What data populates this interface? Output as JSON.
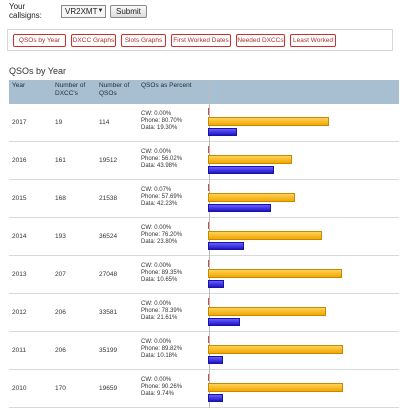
{
  "header": {
    "callsign_label": "Your callsigns:",
    "callsign_value": "VR2XMT",
    "submit_label": "Submit"
  },
  "nav": [
    {
      "label": "QSOs by Year"
    },
    {
      "label": "DXCC Graphs"
    },
    {
      "label": "Slots Graphs"
    },
    {
      "label": "First Worked Dates"
    },
    {
      "label": "Needed DXCCs"
    },
    {
      "label": "Least Worked"
    }
  ],
  "section_title": "QSOs by Year",
  "table": {
    "columns": [
      "Year",
      "Number of DXCC's",
      "Number of QSOs",
      "QSOs as Percent"
    ],
    "rows": [
      {
        "year": "2017",
        "dxcc": "19",
        "qsos": "114",
        "cw": "CW: 0.00%",
        "phone": "Phone: 80.70%",
        "data": "Data: 19.30%",
        "cw_pct": 0.0,
        "phone_pct": 80.7,
        "data_pct": 19.3
      },
      {
        "year": "2016",
        "dxcc": "161",
        "qsos": "19512",
        "cw": "CW: 0.00%",
        "phone": "Phone: 56.02%",
        "data": "Data: 43.98%",
        "cw_pct": 0.0,
        "phone_pct": 56.02,
        "data_pct": 43.98
      },
      {
        "year": "2015",
        "dxcc": "168",
        "qsos": "21538",
        "cw": "CW: 0.07%",
        "phone": "Phone: 57.69%",
        "data": "Data: 42.23%",
        "cw_pct": 0.07,
        "phone_pct": 57.69,
        "data_pct": 42.23
      },
      {
        "year": "2014",
        "dxcc": "193",
        "qsos": "36524",
        "cw": "CW: 0.00%",
        "phone": "Phone: 76.20%",
        "data": "Data: 23.80%",
        "cw_pct": 0.0,
        "phone_pct": 76.2,
        "data_pct": 23.8
      },
      {
        "year": "2013",
        "dxcc": "207",
        "qsos": "27048",
        "cw": "CW: 0.00%",
        "phone": "Phone: 89.35%",
        "data": "Data: 10.65%",
        "cw_pct": 0.0,
        "phone_pct": 89.35,
        "data_pct": 10.65
      },
      {
        "year": "2012",
        "dxcc": "206",
        "qsos": "33581",
        "cw": "CW: 0.00%",
        "phone": "Phone: 78.39%",
        "data": "Data: 21.61%",
        "cw_pct": 0.0,
        "phone_pct": 78.39,
        "data_pct": 21.61
      },
      {
        "year": "2011",
        "dxcc": "206",
        "qsos": "35199",
        "cw": "CW: 0.00%",
        "phone": "Phone: 89.82%",
        "data": "Data: 10.18%",
        "cw_pct": 0.0,
        "phone_pct": 89.82,
        "data_pct": 10.18
      },
      {
        "year": "2010",
        "dxcc": "170",
        "qsos": "19659",
        "cw": "CW: 0.00%",
        "phone": "Phone: 90.26%",
        "data": "Data: 9.74%",
        "cw_pct": 0.0,
        "phone_pct": 90.26,
        "data_pct": 9.74
      }
    ]
  },
  "colors": {
    "header_bg": "#a7bfd1",
    "phone": "#f2a800",
    "data": "#1e16c8",
    "cw": "#d7453c",
    "nav_border": "#c9302c"
  }
}
